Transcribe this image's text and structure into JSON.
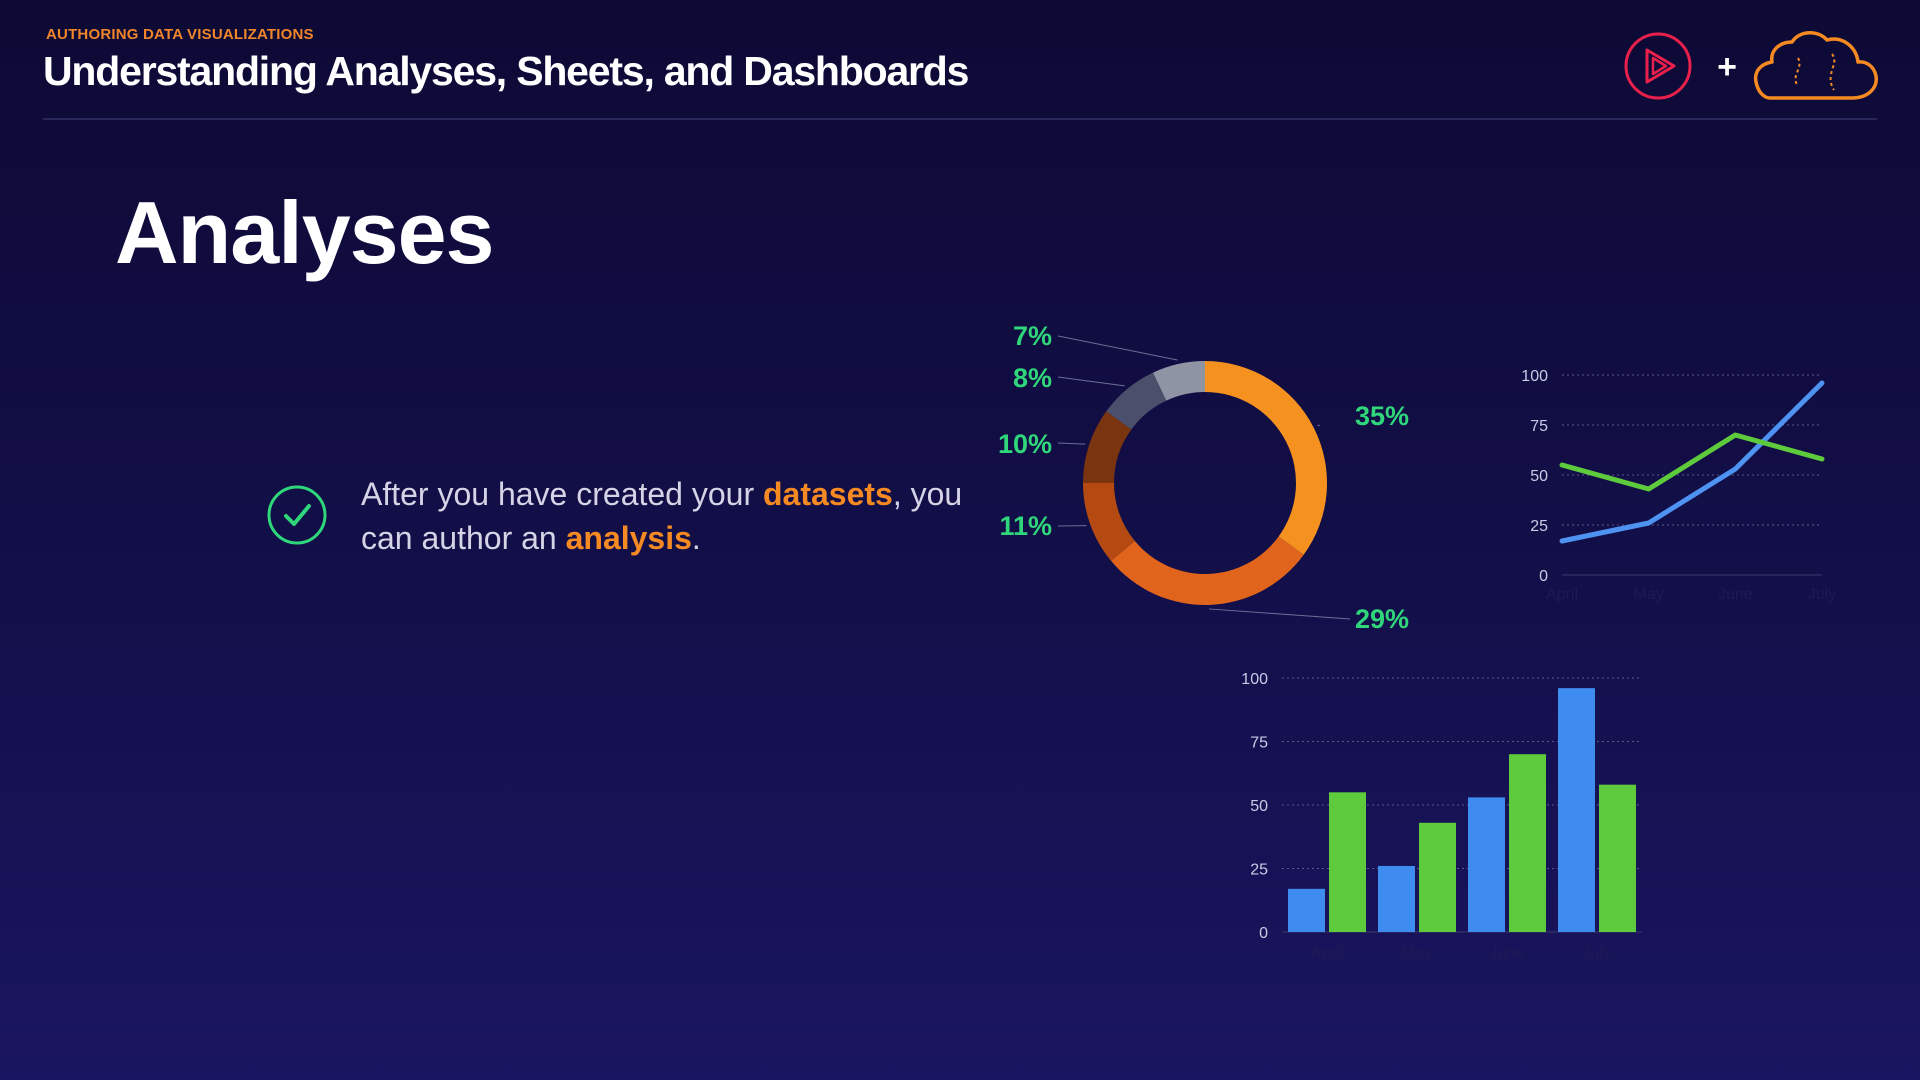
{
  "header": {
    "kicker": "AUTHORING DATA VISUALIZATIONS",
    "title": "Understanding Analyses, Sheets, and Dashboards",
    "logos": {
      "left": "pluralsight-logo",
      "plus": "+",
      "right": "aws-quicksight-cloud-logo"
    }
  },
  "slide": {
    "title": "Analyses",
    "bullet": {
      "icon": "check-circle-icon",
      "text_before": "After you have created your ",
      "highlight_1": "datasets",
      "text_middle": ", you can author an ",
      "highlight_2": "analysis",
      "text_after": "."
    }
  },
  "colors": {
    "accent_orange": "#f68a22",
    "label_green": "#2fd67a",
    "series_blue": "#3f8cf0",
    "series_green": "#5ecb3c"
  },
  "chart_data": [
    {
      "type": "pie",
      "variant": "donut",
      "slices": [
        {
          "label": "35%",
          "value": 35,
          "color": "#f5921f"
        },
        {
          "label": "29%",
          "value": 29,
          "color": "#e0641c"
        },
        {
          "label": "11%",
          "value": 11,
          "color": "#b44a12"
        },
        {
          "label": "10%",
          "value": 10,
          "color": "#7a3510"
        },
        {
          "label": "8%",
          "value": 8,
          "color": "#4a4f6b"
        },
        {
          "label": "7%",
          "value": 7,
          "color": "#8f94a5"
        }
      ]
    },
    {
      "type": "line",
      "categories": [
        "April",
        "May",
        "June",
        "July"
      ],
      "yticks": [
        0,
        25,
        50,
        75,
        100
      ],
      "ylim": [
        0,
        100
      ],
      "grid": true,
      "series": [
        {
          "values": [
            17,
            26,
            53,
            96
          ],
          "color": "#4f93f2"
        },
        {
          "values": [
            55,
            43,
            70,
            58
          ],
          "color": "#5ecb3c"
        }
      ]
    },
    {
      "type": "bar",
      "categories": [
        "April",
        "May",
        "June",
        "July"
      ],
      "yticks": [
        0,
        25,
        50,
        75,
        100
      ],
      "ylim": [
        0,
        100
      ],
      "grid": true,
      "series": [
        {
          "values": [
            17,
            26,
            53,
            96
          ],
          "color": "#3f8cf0"
        },
        {
          "values": [
            55,
            43,
            70,
            58
          ],
          "color": "#5ecb3c"
        }
      ]
    }
  ]
}
